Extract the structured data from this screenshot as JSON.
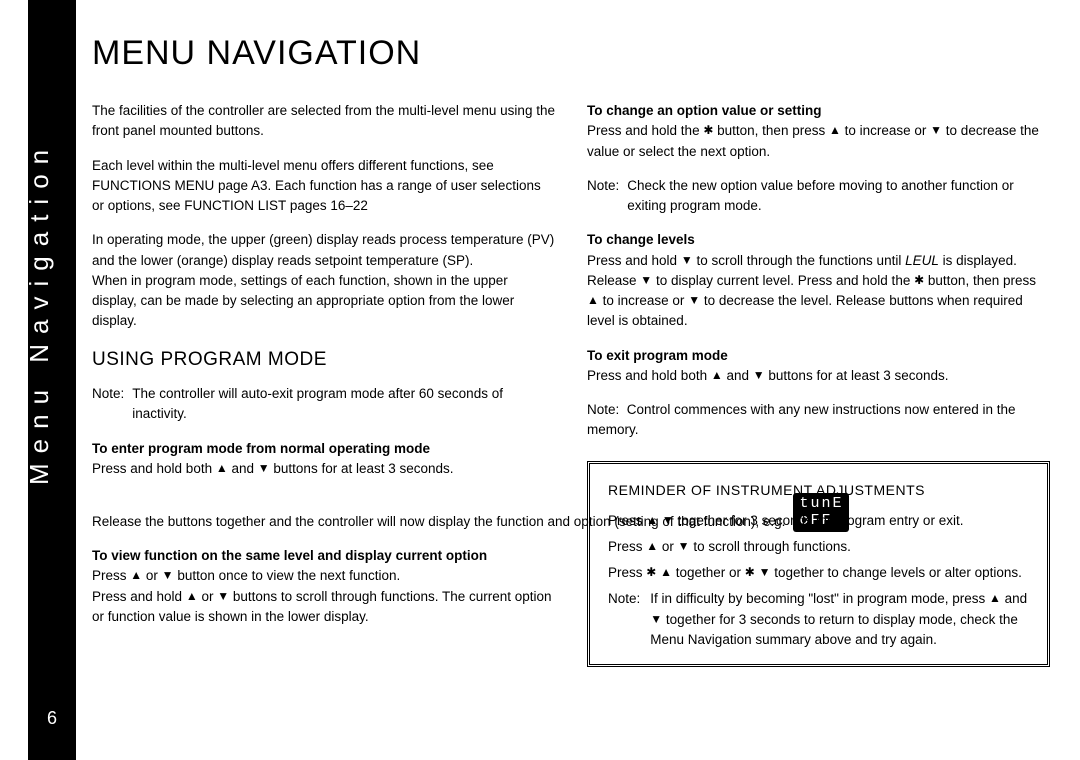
{
  "pageNumber": "6",
  "sideLabel": "Menu Navigation",
  "title": "MENU NAVIGATION",
  "symbols": {
    "up": "▲",
    "down": "▼",
    "star": "✱"
  },
  "lcd": {
    "line1": "tunE",
    "line2": " oFF"
  },
  "left": {
    "intro1": "The facilities of the controller are selected from the multi-level menu using the front panel mounted buttons.",
    "intro2a": "Each level within the multi-level menu offers different functions, see FUNCTIONS MENU page A3. Each function has a range of user selections or options, see FUNCTION LIST pages 16–22",
    "operating1": "In operating mode, the upper (green) display reads process temperature (PV) and the lower (orange) display reads setpoint temperature (SP).",
    "operating2": "When in program mode, settings of each function, shown in the upper display, can be made by selecting an appropriate option from the lower display.",
    "subhead": "USING PROGRAM MODE",
    "noteLabel": "Note:",
    "noteText": "The controller will auto-exit program mode after 60 seconds of inactivity.",
    "enterHead": "To enter program mode from normal operating mode",
    "enter1a": "Press and hold both ",
    "enter1b": " and ",
    "enter1c": " buttons for at least 3 seconds.",
    "enter2": "Release the buttons together and the controller will now display the function and option (setting of that function), e.g.",
    "view1": "To view function on the same level and display current option",
    "view2a": "Press ",
    "view2b": " or ",
    "view2c": " button once to view the next function.",
    "view3a": "Press and hold ",
    "view3b": " or ",
    "view3c": " buttons to scroll through functions. The current option or function value is shown in the lower display."
  },
  "right": {
    "changeHead": "To change an option value or setting",
    "change1a": "Press and hold the ",
    "change1b": " button, then press ",
    "change1c": " to increase or ",
    "change1d": " to decrease the value or select the next option.",
    "noteLabel": "Note:",
    "noteText": "Check the new option value before moving to another function or exiting program mode.",
    "levelsHead": "To change levels",
    "levels1a": "Press and hold ",
    "levels1b": " to scroll through the functions until ",
    "levelsItalic": "LEUL",
    "levels1c": " is displayed. Release ",
    "levels1d": " to display current level. Press and hold the ",
    "levels1e": " button, then press ",
    "levels1f": " to increase or ",
    "levels1g": " to decrease the level. Release buttons when required level is obtained.",
    "exitHead": "To exit program mode",
    "exit1a": "Press and hold both ",
    "exit1b": " and ",
    "exit1c": " buttons for at least 3 seconds.",
    "exitNoteLabel": "Note:",
    "exitNoteText": "Control commences with any new instructions now entered in the memory.",
    "reminderTitle": "REMINDER OF INSTRUMENT ADJUSTMENTS",
    "rem1a": "Press ",
    "rem1b": " ",
    "rem1c": " together for 3 seconds for program entry or exit.",
    "rem2a": "Press ",
    "rem2b": " or ",
    "rem2c": " to scroll through functions.",
    "rem3a": "Press ",
    "rem3b": " ",
    "rem3c": " together or ",
    "rem3d": " ",
    "rem3e": " together to change levels or alter options.",
    "remNoteLabel": "Note:",
    "remNote1a": "If in difficulty by becoming \"lost\" in program mode, press ",
    "remNote1b": " and ",
    "remNote1c": " together for 3 seconds to return to display mode, check the Menu Navigation summary above and try again."
  }
}
